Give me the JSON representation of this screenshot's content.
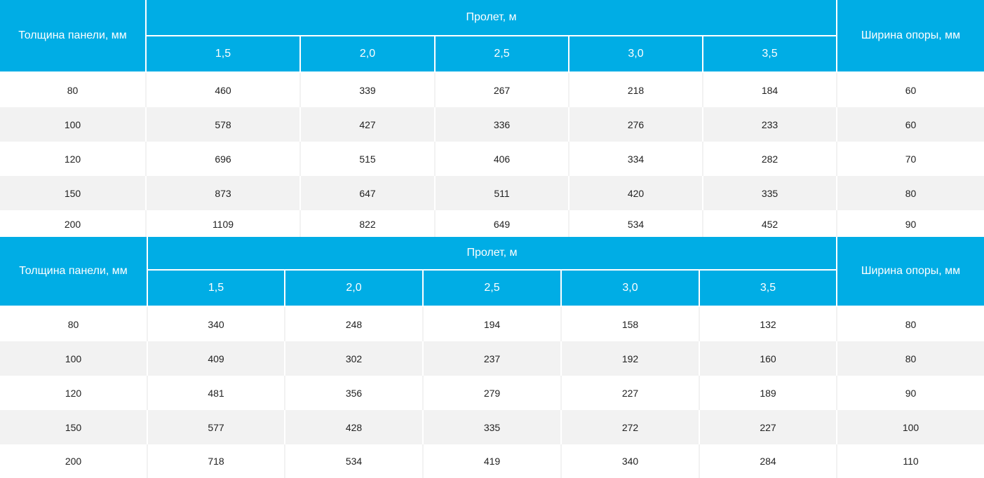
{
  "colors": {
    "header_bg": "#00ade5",
    "header_text": "#ffffff",
    "row_alt": "#f2f2f2"
  },
  "tables": [
    {
      "header": {
        "thickness_label": "Толщина панели, мм",
        "span_label": "Пролет, м",
        "support_label": "Ширина опоры, мм",
        "spans": [
          "1,5",
          "2,0",
          "2,5",
          "3,0",
          "3,5"
        ]
      },
      "rows": [
        [
          "80",
          "460",
          "339",
          "267",
          "218",
          "184",
          "60"
        ],
        [
          "100",
          "578",
          "427",
          "336",
          "276",
          "233",
          "60"
        ],
        [
          "120",
          "696",
          "515",
          "406",
          "334",
          "282",
          "70"
        ],
        [
          "150",
          "873",
          "647",
          "511",
          "420",
          "335",
          "80"
        ],
        [
          "200",
          "1109",
          "822",
          "649",
          "534",
          "452",
          "90"
        ]
      ]
    },
    {
      "header": {
        "thickness_label": "Толщина панели, мм",
        "span_label": "Пролет, м",
        "support_label": "Ширина опоры, мм",
        "spans": [
          "1,5",
          "2,0",
          "2,5",
          "3,0",
          "3,5"
        ]
      },
      "rows": [
        [
          "80",
          "340",
          "248",
          "194",
          "158",
          "132",
          "80"
        ],
        [
          "100",
          "409",
          "302",
          "237",
          "192",
          "160",
          "80"
        ],
        [
          "120",
          "481",
          "356",
          "279",
          "227",
          "189",
          "90"
        ],
        [
          "150",
          "577",
          "428",
          "335",
          "272",
          "227",
          "100"
        ],
        [
          "200",
          "718",
          "534",
          "419",
          "340",
          "284",
          "110"
        ]
      ]
    }
  ]
}
